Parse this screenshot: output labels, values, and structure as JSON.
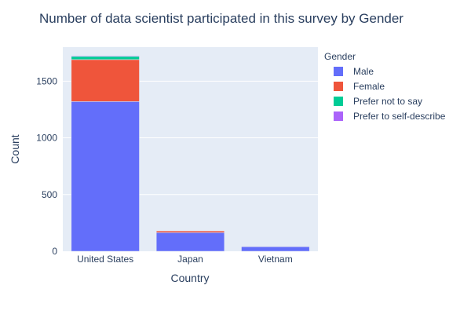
{
  "chart_data": {
    "type": "bar",
    "stacked": true,
    "title": "Number of data scientist participated in this survey by Gender",
    "xlabel": "Country",
    "ylabel": "Count",
    "categories": [
      "United States",
      "Japan",
      "Vietnam"
    ],
    "ylim": [
      0,
      1800
    ],
    "yticks": [
      0,
      500,
      1000,
      1500
    ],
    "grid": true,
    "legend_title": "Gender",
    "legend_position": "top-right",
    "series": [
      {
        "name": "Male",
        "color": "#636efa",
        "values": [
          1320,
          165,
          40
        ]
      },
      {
        "name": "Female",
        "color": "#ef553b",
        "values": [
          370,
          15,
          2
        ]
      },
      {
        "name": "Prefer not to say",
        "color": "#00cc96",
        "values": [
          28,
          2,
          0
        ]
      },
      {
        "name": "Prefer to self-describe",
        "color": "#ab63fa",
        "values": [
          6,
          0,
          0
        ]
      }
    ]
  }
}
